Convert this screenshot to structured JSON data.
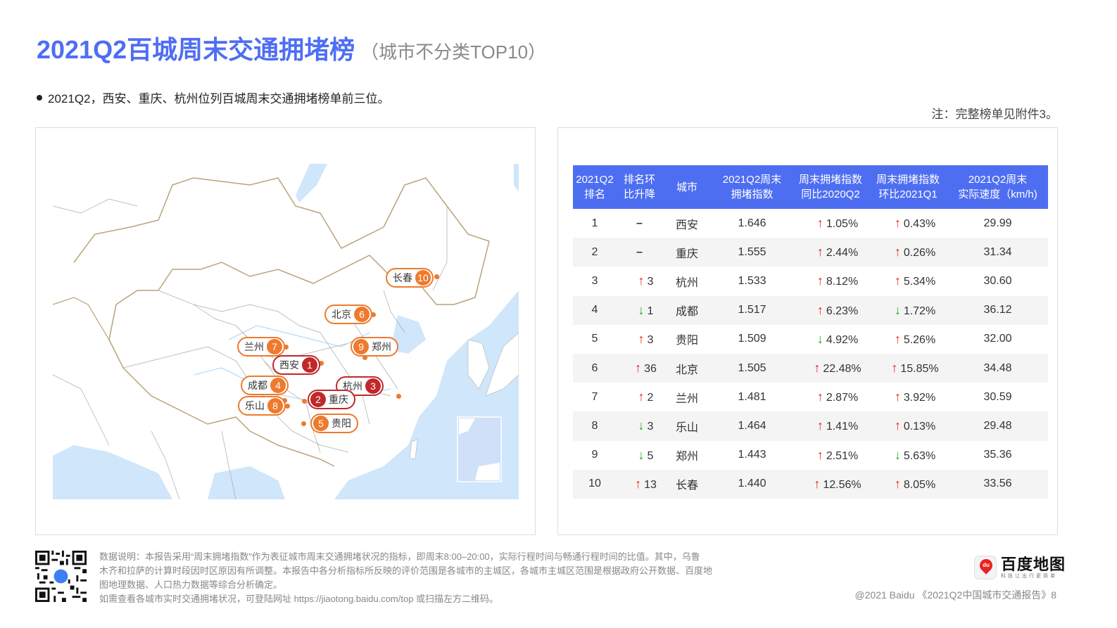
{
  "header": {
    "title": "2021Q2百城周末交通拥堵榜",
    "subtitle": "（城市不分类TOP10）"
  },
  "summary": {
    "bullet": "2021Q2，西安、重庆、杭州位列百城周末交通拥堵榜单前三位。",
    "note": "注：完整榜单见附件3。"
  },
  "colors": {
    "accent": "#4e6ef2",
    "top3": "#c0282a",
    "other_rank": "#ee7a2e",
    "up": "#e8231d",
    "down": "#23a023"
  },
  "map": {
    "labels": [
      {
        "rank": "1",
        "city": "西安",
        "tier": "top3"
      },
      {
        "rank": "2",
        "city": "重庆",
        "tier": "top3"
      },
      {
        "rank": "3",
        "city": "杭州",
        "tier": "top3"
      },
      {
        "rank": "4",
        "city": "成都",
        "tier": "other"
      },
      {
        "rank": "5",
        "city": "贵阳",
        "tier": "other"
      },
      {
        "rank": "6",
        "city": "北京",
        "tier": "other"
      },
      {
        "rank": "7",
        "city": "兰州",
        "tier": "other"
      },
      {
        "rank": "8",
        "city": "乐山",
        "tier": "other"
      },
      {
        "rank": "9",
        "city": "郑州",
        "tier": "other"
      },
      {
        "rank": "10",
        "city": "长春",
        "tier": "other"
      }
    ]
  },
  "table": {
    "headers": [
      {
        "line1": "2021Q2",
        "line2": "排名"
      },
      {
        "line1": "排名环",
        "line2": "比升降"
      },
      {
        "line1": "城市",
        "line2": ""
      },
      {
        "line1": "2021Q2周末",
        "line2": "拥堵指数"
      },
      {
        "line1": "周末拥堵指数",
        "line2": "同比2020Q2"
      },
      {
        "line1": "周末拥堵指数",
        "line2": "环比2021Q1"
      },
      {
        "line1": "2021Q2周末",
        "line2": "实际速度（km/h)"
      }
    ],
    "rows": [
      {
        "rank": "1",
        "rank_change_dir": "none",
        "rank_change": "–",
        "city": "西安",
        "index": "1.646",
        "yoy_dir": "up",
        "yoy": "1.05%",
        "qoq_dir": "up",
        "qoq": "0.43%",
        "speed": "29.99"
      },
      {
        "rank": "2",
        "rank_change_dir": "none",
        "rank_change": "–",
        "city": "重庆",
        "index": "1.555",
        "yoy_dir": "up",
        "yoy": "2.44%",
        "qoq_dir": "up",
        "qoq": "0.26%",
        "speed": "31.34"
      },
      {
        "rank": "3",
        "rank_change_dir": "up",
        "rank_change": "3",
        "city": "杭州",
        "index": "1.533",
        "yoy_dir": "up",
        "yoy": "8.12%",
        "qoq_dir": "up",
        "qoq": "5.34%",
        "speed": "30.60"
      },
      {
        "rank": "4",
        "rank_change_dir": "down",
        "rank_change": "1",
        "city": "成都",
        "index": "1.517",
        "yoy_dir": "up",
        "yoy": "6.23%",
        "qoq_dir": "down",
        "qoq": "1.72%",
        "speed": "36.12"
      },
      {
        "rank": "5",
        "rank_change_dir": "up",
        "rank_change": "3",
        "city": "贵阳",
        "index": "1.509",
        "yoy_dir": "down",
        "yoy": "4.92%",
        "qoq_dir": "up",
        "qoq": "5.26%",
        "speed": "32.00"
      },
      {
        "rank": "6",
        "rank_change_dir": "up",
        "rank_change": "36",
        "city": "北京",
        "index": "1.505",
        "yoy_dir": "up",
        "yoy": "22.48%",
        "qoq_dir": "up",
        "qoq": "15.85%",
        "speed": "34.48"
      },
      {
        "rank": "7",
        "rank_change_dir": "up",
        "rank_change": "2",
        "city": "兰州",
        "index": "1.481",
        "yoy_dir": "up",
        "yoy": "2.87%",
        "qoq_dir": "up",
        "qoq": "3.92%",
        "speed": "30.59"
      },
      {
        "rank": "8",
        "rank_change_dir": "down",
        "rank_change": "3",
        "city": "乐山",
        "index": "1.464",
        "yoy_dir": "up",
        "yoy": "1.41%",
        "qoq_dir": "up",
        "qoq": "0.13%",
        "speed": "29.48"
      },
      {
        "rank": "9",
        "rank_change_dir": "down",
        "rank_change": "5",
        "city": "郑州",
        "index": "1.443",
        "yoy_dir": "up",
        "yoy": "2.51%",
        "qoq_dir": "down",
        "qoq": "5.63%",
        "speed": "35.36"
      },
      {
        "rank": "10",
        "rank_change_dir": "up",
        "rank_change": "13",
        "city": "长春",
        "index": "1.440",
        "yoy_dir": "up",
        "yoy": "12.56%",
        "qoq_dir": "up",
        "qoq": "8.05%",
        "speed": "33.56"
      }
    ],
    "arrow_up": "↑",
    "arrow_down": "↓"
  },
  "footer": {
    "description_lines": [
      "数据说明：本报告采用“周末拥堵指数”作为表征城市周末交通拥堵状况的指标，即周末8:00–20:00，实际行程时间与畅通行程时间的比值。其中，乌鲁",
      "木齐和拉萨的计算时段因时区原因有所调整。本报告中各分析指标所反映的评价范围是各城市的主城区，各城市主城区范围是根据政府公开数据、百度地",
      "图地理数据、人口热力数据等综合分析确定。",
      "如需查看各城市实时交通拥堵状况，可登陆网址 https://jiaotong.baidu.com/top 或扫描左方二维码。"
    ],
    "logo_icon_text": "du",
    "logo_name": "百度地图",
    "logo_slogan": "科技让出行更简单",
    "copyright": "@2021 Baidu 《2021Q2中国城市交通报告》8"
  }
}
